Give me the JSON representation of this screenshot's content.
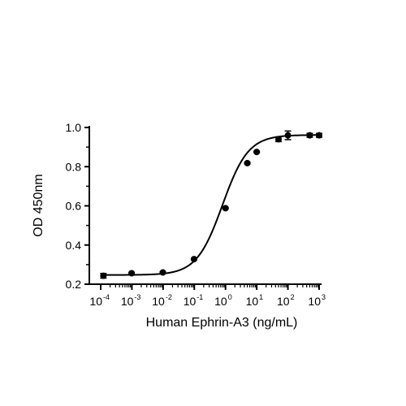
{
  "chart_data": {
    "type": "scatter",
    "title": "",
    "xlabel": "Human Ephrin-A3 (ng/mL)",
    "ylabel": "OD 450nm",
    "xscale": "log",
    "xlim": [
      0.0001,
      1000
    ],
    "ylim": [
      0.2,
      1.0
    ],
    "x_ticks": [
      {
        "base": "10",
        "exp": "-4"
      },
      {
        "base": "10",
        "exp": "-3"
      },
      {
        "base": "10",
        "exp": "-2"
      },
      {
        "base": "10",
        "exp": "-1"
      },
      {
        "base": "10",
        "exp": "0"
      },
      {
        "base": "10",
        "exp": "1"
      },
      {
        "base": "10",
        "exp": "2"
      },
      {
        "base": "10",
        "exp": "3"
      }
    ],
    "y_ticks": [
      "0.2",
      "0.4",
      "0.6",
      "0.8",
      "1.0"
    ],
    "grid": false,
    "legend": "none",
    "series": [
      {
        "points": [
          {
            "x": 0.000122,
            "y": 0.243,
            "err": 0.012
          },
          {
            "x": 0.00098,
            "y": 0.256,
            "err": 0.004
          },
          {
            "x": 0.0098,
            "y": 0.26,
            "err": 0.004
          },
          {
            "x": 0.098,
            "y": 0.328,
            "err": 0.004
          },
          {
            "x": 1.0,
            "y": 0.588,
            "err": 0.004
          },
          {
            "x": 5.0,
            "y": 0.818,
            "err": 0.004
          },
          {
            "x": 10.0,
            "y": 0.875,
            "err": 0.004
          },
          {
            "x": 50.0,
            "y": 0.94,
            "err": 0.012
          },
          {
            "x": 100.0,
            "y": 0.96,
            "err": 0.022
          },
          {
            "x": 500.0,
            "y": 0.96,
            "err": 0.01
          },
          {
            "x": 1000.0,
            "y": 0.96,
            "err": 0.01
          }
        ],
        "fit": {
          "model": "4PL",
          "bottom": 0.247,
          "top": 0.962,
          "ec50": 0.8,
          "hill": 1.05
        }
      }
    ],
    "colors": {
      "ink": "#000000"
    }
  }
}
